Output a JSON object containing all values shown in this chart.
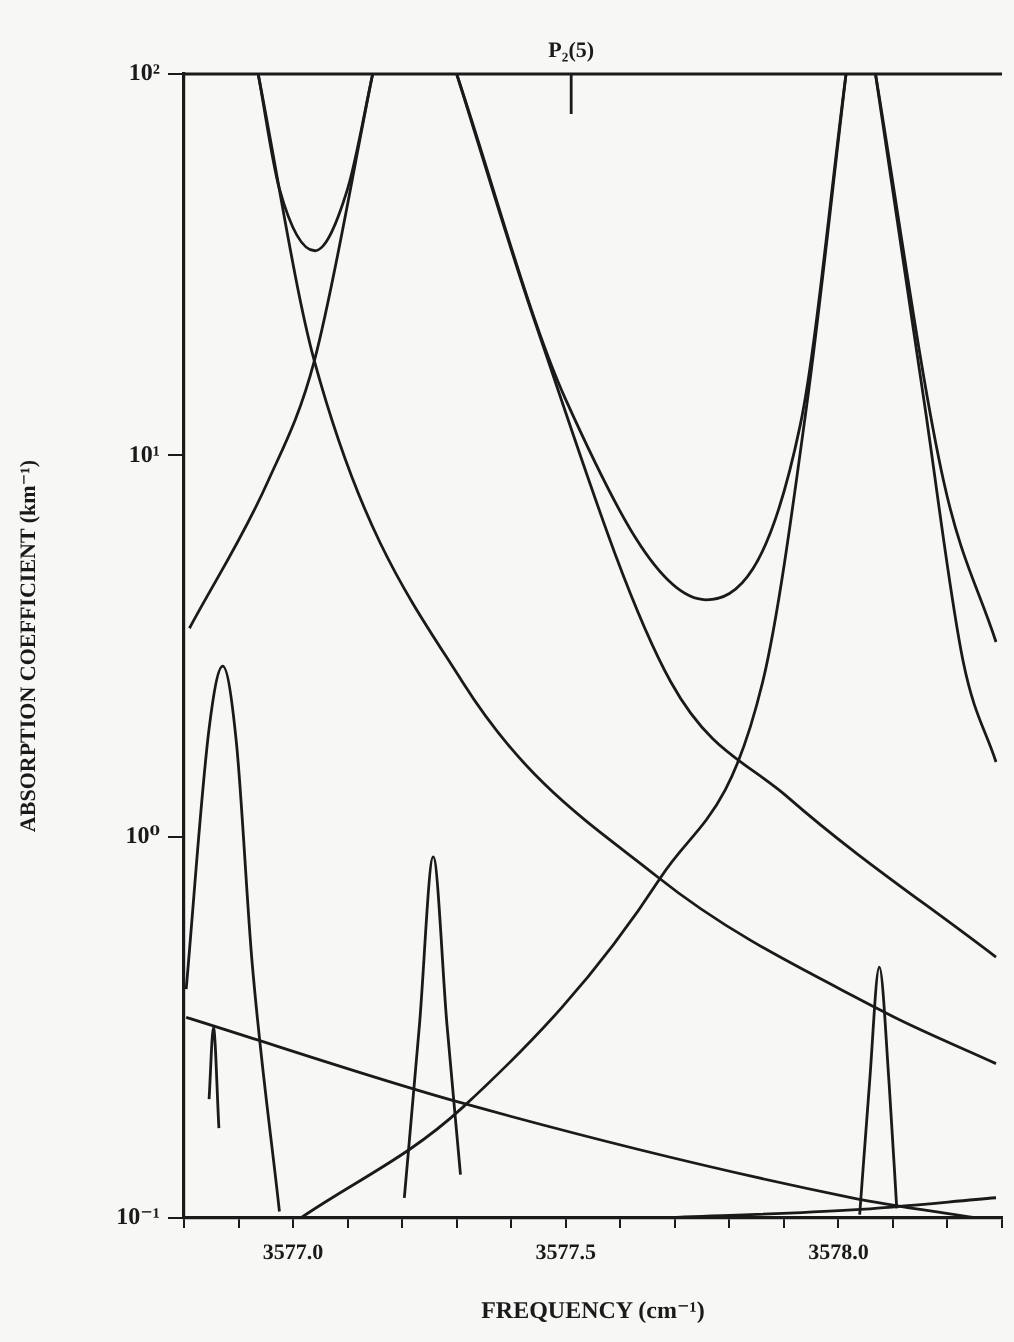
{
  "chart_data": {
    "type": "line",
    "xlabel": "FREQUENCY (cm⁻¹)",
    "ylabel": "ABSORPTION COEFFICIENT (km⁻¹)",
    "ref_lines": [
      {
        "axis": "x",
        "value": 3577.51,
        "label": "P₂(5)"
      }
    ],
    "xlim": [
      3576.8,
      3578.3
    ],
    "xticks": [
      {
        "value": 3576.8,
        "label": null
      },
      {
        "value": 3576.9,
        "label": null
      },
      {
        "value": 3577.0,
        "label": "3577.0"
      },
      {
        "value": 3577.1,
        "label": null
      },
      {
        "value": 3577.2,
        "label": null
      },
      {
        "value": 3577.3,
        "label": null
      },
      {
        "value": 3577.4,
        "label": null
      },
      {
        "value": 3577.5,
        "label": "3577.5"
      },
      {
        "value": 3577.6,
        "label": null
      },
      {
        "value": 3577.7,
        "label": null
      },
      {
        "value": 3577.8,
        "label": null
      },
      {
        "value": 3577.9,
        "label": null
      },
      {
        "value": 3578.0,
        "label": "3578.0"
      },
      {
        "value": 3578.1,
        "label": null
      },
      {
        "value": 3578.2,
        "label": null
      },
      {
        "value": 3578.3,
        "label": null
      }
    ],
    "ylim": [
      0.1,
      100
    ],
    "yticks": [
      {
        "value": 0.1,
        "label": "10⁻¹"
      },
      {
        "value": 1,
        "label": "10⁰"
      },
      {
        "value": 10,
        "label": "10¹"
      },
      {
        "value": 100,
        "label": "10²"
      }
    ],
    "log": true,
    "grid": false,
    "legend": false,
    "marker": "none",
    "line_style": "solid",
    "series": [
      {
        "color": "#1a1a1a",
        "x": [
          3576.936,
          3577.039,
          3577.311,
          3577.668,
          3578.075,
          3578.289
        ],
        "values": [
          100,
          17.7,
          2.54,
          0.785,
          0.352,
          0.254
        ]
      },
      {
        "color": "#1a1a1a",
        "x": [
          3576.81,
          3576.954,
          3577.039,
          3577.146
        ],
        "values": [
          3.52,
          8.55,
          17.7,
          100
        ]
      },
      {
        "color": "#1a1a1a",
        "x": [
          3576.936,
          3576.975,
          3577.04,
          3577.1,
          3577.146
        ],
        "values": [
          100,
          50,
          34.4,
          50,
          100
        ]
      },
      {
        "color": "#1a1a1a",
        "x": [
          3577.3,
          3577.443,
          3577.693,
          3577.907,
          3578.289
        ],
        "values": [
          100,
          22.5,
          2.54,
          1.27,
          0.483
        ]
      },
      {
        "color": "#1a1a1a",
        "x": [
          3577.3,
          3577.5,
          3577.757,
          3577.93,
          3578.014
        ],
        "values": [
          100,
          14,
          4.18,
          12,
          100
        ]
      },
      {
        "color": "#1a1a1a",
        "x": [
          3577.014,
          3577.311,
          3577.675,
          3577.861,
          3577.943,
          3578.014
        ],
        "values": [
          0.1,
          0.195,
          0.785,
          2.54,
          13.9,
          100
        ]
      },
      {
        "color": "#1a1a1a",
        "x": [
          3578.068,
          3578.157,
          3578.229,
          3578.289
        ],
        "values": [
          100,
          13.9,
          2.87,
          1.57
        ]
      },
      {
        "color": "#1a1a1a",
        "x": [
          3578.068,
          3578.193,
          3578.289
        ],
        "values": [
          100,
          8.55,
          3.24
        ]
      },
      {
        "color": "#1a1a1a",
        "x": [
          3576.804,
          3577.311,
          3578.025,
          3578.254
        ],
        "values": [
          0.336,
          0.2,
          0.113,
          0.1
        ]
      },
      {
        "color": "#1a1a1a",
        "x": [
          3577.668,
          3578.025,
          3578.289
        ],
        "values": [
          0.1,
          0.105,
          0.113
        ]
      },
      {
        "color": "#1a1a1a",
        "x": [
          3576.804,
          3576.846,
          3576.871,
          3576.896,
          3576.925,
          3576.975
        ],
        "values": [
          0.398,
          1.92,
          2.8,
          1.77,
          0.466,
          0.104
        ]
      },
      {
        "color": "#1a1a1a",
        "x": [
          3576.846,
          3576.854,
          3576.864
        ],
        "values": [
          0.205,
          0.316,
          0.172
        ]
      },
      {
        "color": "#1a1a1a",
        "x": [
          3577.204,
          3577.232,
          3577.257,
          3577.282,
          3577.307
        ],
        "values": [
          0.113,
          0.324,
          0.885,
          0.324,
          0.13
        ]
      },
      {
        "color": "#1a1a1a",
        "x": [
          3578.039,
          3578.057,
          3578.075,
          3578.093,
          3578.107
        ],
        "values": [
          0.102,
          0.225,
          0.455,
          0.225,
          0.106
        ]
      }
    ]
  }
}
